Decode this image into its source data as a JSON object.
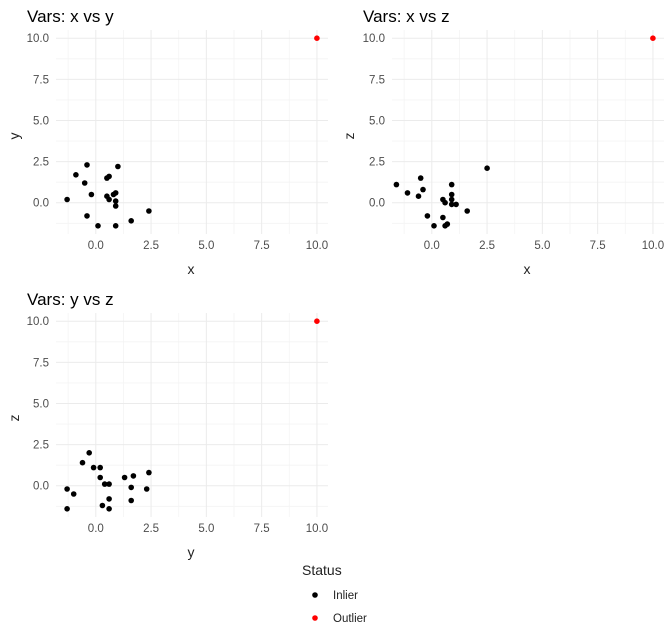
{
  "chart_data": [
    {
      "type": "scatter",
      "title": "Vars: x vs y",
      "xlabel": "x",
      "ylabel": "y",
      "xlim": [
        -1.8,
        10.5
      ],
      "ylim": [
        -1.9,
        10.5
      ],
      "x_ticks": [
        0,
        2.5,
        5,
        7.5,
        10
      ],
      "y_ticks": [
        0,
        2.5,
        5,
        7.5,
        10
      ],
      "x_tick_labels": [
        "0.0",
        "2.5",
        "5.0",
        "7.5",
        "10.0"
      ],
      "y_tick_labels": [
        "0.0",
        "2.5",
        "5.0",
        "7.5",
        "10.0"
      ],
      "grid": true,
      "series": [
        {
          "name": "Inlier",
          "color": "#000000",
          "points": [
            [
              -1.3,
              0.2
            ],
            [
              -0.9,
              1.7
            ],
            [
              -0.4,
              2.3
            ],
            [
              -0.5,
              1.2
            ],
            [
              -0.2,
              0.5
            ],
            [
              -0.4,
              -0.8
            ],
            [
              0.1,
              -1.4
            ],
            [
              0.5,
              1.5
            ],
            [
              0.6,
              1.6
            ],
            [
              0.5,
              0.4
            ],
            [
              0.6,
              0.2
            ],
            [
              0.8,
              0.5
            ],
            [
              0.9,
              0.6
            ],
            [
              0.9,
              0.1
            ],
            [
              0.9,
              -0.2
            ],
            [
              1.0,
              2.2
            ],
            [
              0.9,
              -1.4
            ],
            [
              1.6,
              -1.1
            ],
            [
              2.4,
              -0.5
            ]
          ]
        },
        {
          "name": "Outlier",
          "color": "#ff0000",
          "points": [
            [
              10,
              10
            ]
          ]
        }
      ]
    },
    {
      "type": "scatter",
      "title": "Vars: x vs z",
      "xlabel": "x",
      "ylabel": "z",
      "xlim": [
        -1.8,
        10.5
      ],
      "ylim": [
        -1.9,
        10.5
      ],
      "x_ticks": [
        0,
        2.5,
        5,
        7.5,
        10
      ],
      "y_ticks": [
        0,
        2.5,
        5,
        7.5,
        10
      ],
      "x_tick_labels": [
        "0.0",
        "2.5",
        "5.0",
        "7.5",
        "10.0"
      ],
      "y_tick_labels": [
        "0.0",
        "2.5",
        "5.0",
        "7.5",
        "10.0"
      ],
      "grid": true,
      "series": [
        {
          "name": "Inlier",
          "color": "#000000",
          "points": [
            [
              -1.6,
              1.1
            ],
            [
              -1.1,
              0.6
            ],
            [
              -0.5,
              1.5
            ],
            [
              -0.6,
              0.4
            ],
            [
              -0.4,
              0.8
            ],
            [
              -0.2,
              -0.8
            ],
            [
              0.1,
              -1.4
            ],
            [
              0.5,
              0.2
            ],
            [
              0.6,
              0.0
            ],
            [
              0.5,
              -0.9
            ],
            [
              0.7,
              -1.3
            ],
            [
              0.6,
              -1.4
            ],
            [
              0.9,
              1.1
            ],
            [
              0.9,
              0.5
            ],
            [
              0.9,
              0.2
            ],
            [
              0.9,
              -0.1
            ],
            [
              1.1,
              -0.1
            ],
            [
              1.6,
              -0.5
            ],
            [
              2.5,
              2.1
            ]
          ]
        },
        {
          "name": "Outlier",
          "color": "#ff0000",
          "points": [
            [
              10,
              10
            ]
          ]
        }
      ]
    },
    {
      "type": "scatter",
      "title": "Vars: y vs z",
      "xlabel": "y",
      "ylabel": "z",
      "xlim": [
        -1.8,
        10.5
      ],
      "ylim": [
        -1.9,
        10.5
      ],
      "x_ticks": [
        0,
        2.5,
        5,
        7.5,
        10
      ],
      "y_ticks": [
        0,
        2.5,
        5,
        7.5,
        10
      ],
      "x_tick_labels": [
        "0.0",
        "2.5",
        "5.0",
        "7.5",
        "10.0"
      ],
      "y_tick_labels": [
        "0.0",
        "2.5",
        "5.0",
        "7.5",
        "10.0"
      ],
      "grid": true,
      "series": [
        {
          "name": "Inlier",
          "color": "#000000",
          "points": [
            [
              -1.3,
              -0.2
            ],
            [
              -1.0,
              -0.5
            ],
            [
              -1.3,
              -1.4
            ],
            [
              -0.6,
              1.4
            ],
            [
              -0.3,
              2.0
            ],
            [
              -0.1,
              1.1
            ],
            [
              0.2,
              1.1
            ],
            [
              0.2,
              0.5
            ],
            [
              0.4,
              0.1
            ],
            [
              0.6,
              0.1
            ],
            [
              0.3,
              -1.2
            ],
            [
              0.6,
              -0.8
            ],
            [
              0.6,
              -1.4
            ],
            [
              1.3,
              0.5
            ],
            [
              1.7,
              0.6
            ],
            [
              1.6,
              -0.1
            ],
            [
              1.6,
              -0.9
            ],
            [
              2.3,
              -0.2
            ],
            [
              2.4,
              0.8
            ]
          ]
        },
        {
          "name": "Outlier",
          "color": "#ff0000",
          "points": [
            [
              10,
              10
            ]
          ]
        }
      ]
    }
  ],
  "legend": {
    "title": "Status",
    "items": [
      {
        "label": "Inlier",
        "color": "#000000"
      },
      {
        "label": "Outlier",
        "color": "#ff0000"
      }
    ]
  }
}
